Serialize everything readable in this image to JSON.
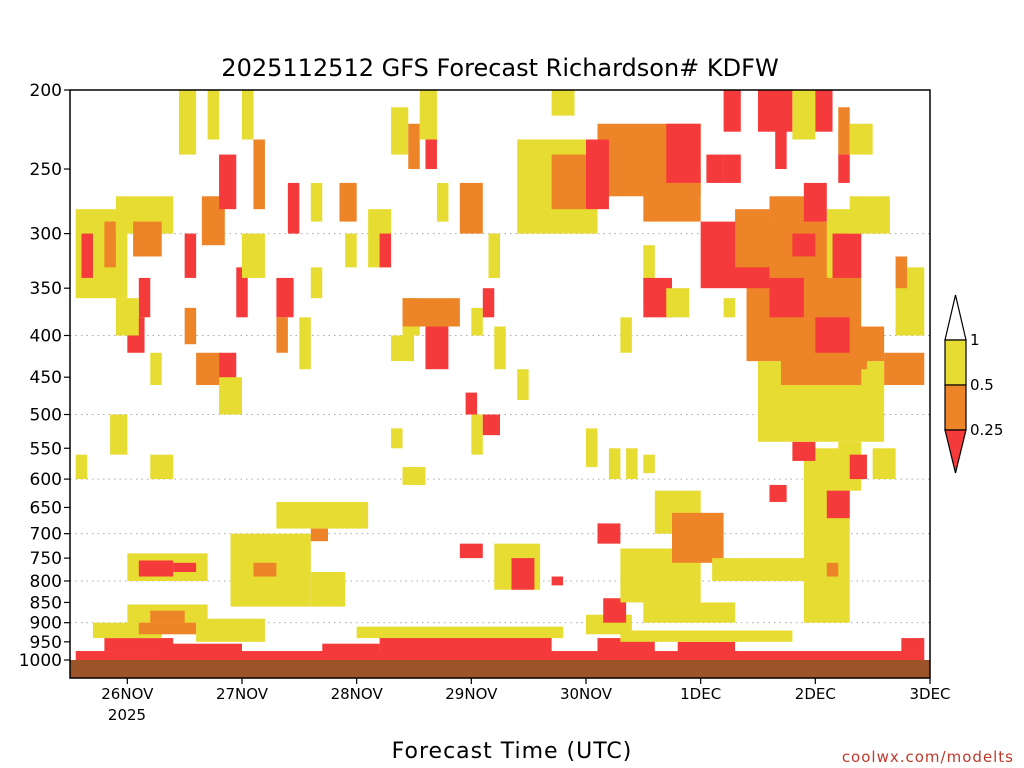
{
  "chart_data": {
    "type": "heatmap",
    "title": "2025112512 GFS Forecast Richardson# KDFW",
    "xlabel": "Forecast Time (UTC)",
    "credit": "coolwx.com/modelts",
    "x_ticks": [
      "26NOV",
      "27NOV",
      "28NOV",
      "29NOV",
      "30NOV",
      "1DEC",
      "2DEC",
      "3DEC"
    ],
    "x_tick_sublabel": "2025",
    "x_range_days": [
      -0.5,
      7.0
    ],
    "y_ticks": [
      200,
      250,
      300,
      350,
      400,
      450,
      500,
      550,
      600,
      650,
      700,
      750,
      800,
      850,
      900,
      950,
      1000
    ],
    "y_gridlines": [
      300,
      400,
      500,
      600,
      700,
      800,
      900
    ],
    "y_range_hPa": [
      200,
      1000
    ],
    "colorbar": {
      "labels": [
        "1",
        "0.5",
        "0.25"
      ],
      "levels": [
        {
          "range": ">1",
          "color": "#ffffff"
        },
        {
          "range": "0.5-1",
          "color": "#e6dc32"
        },
        {
          "range": "0.25-0.5",
          "color": "#ee8428"
        },
        {
          "range": "<0.25",
          "color": "#f43a3a"
        }
      ]
    },
    "surface_color": "#9c5428",
    "regions": [
      {
        "t0": -0.45,
        "t1": 6.95,
        "p0": 975,
        "p1": 1000,
        "level": "<0.25"
      },
      {
        "t0": -0.2,
        "t1": 0.4,
        "p0": 940,
        "p1": 975,
        "level": "<0.25"
      },
      {
        "t0": 0.3,
        "t1": 1.0,
        "p0": 955,
        "p1": 985,
        "level": "<0.25"
      },
      {
        "t0": 1.7,
        "t1": 2.2,
        "p0": 955,
        "p1": 985,
        "level": "<0.25"
      },
      {
        "t0": 2.2,
        "t1": 3.7,
        "p0": 930,
        "p1": 985,
        "level": "<0.25"
      },
      {
        "t0": 4.1,
        "t1": 4.6,
        "p0": 940,
        "p1": 980,
        "level": "<0.25"
      },
      {
        "t0": 4.8,
        "t1": 5.3,
        "p0": 950,
        "p1": 985,
        "level": "<0.25"
      },
      {
        "t0": 6.75,
        "t1": 6.95,
        "p0": 940,
        "p1": 975,
        "level": "<0.25"
      },
      {
        "t0": -0.3,
        "t1": 0.3,
        "p0": 900,
        "p1": 940,
        "level": "0.5-1"
      },
      {
        "t0": 0.1,
        "t1": 0.6,
        "p0": 880,
        "p1": 930,
        "level": "0.25-0.5"
      },
      {
        "t0": 0.6,
        "t1": 1.2,
        "p0": 890,
        "p1": 950,
        "level": "0.5-1"
      },
      {
        "t0": 2.0,
        "t1": 3.8,
        "p0": 910,
        "p1": 940,
        "level": "0.5-1"
      },
      {
        "t0": 4.0,
        "t1": 4.4,
        "p0": 880,
        "p1": 930,
        "level": "0.5-1"
      },
      {
        "t0": 4.3,
        "t1": 5.8,
        "p0": 920,
        "p1": 950,
        "level": "0.5-1"
      },
      {
        "t0": 0.0,
        "t1": 0.7,
        "p0": 740,
        "p1": 800,
        "level": "0.5-1"
      },
      {
        "t0": 0.1,
        "t1": 0.4,
        "p0": 755,
        "p1": 790,
        "level": "<0.25"
      },
      {
        "t0": 0.4,
        "t1": 0.6,
        "p0": 760,
        "p1": 780,
        "level": "<0.25"
      },
      {
        "t0": 0.9,
        "t1": 1.6,
        "p0": 700,
        "p1": 860,
        "level": "0.5-1"
      },
      {
        "t0": 1.1,
        "t1": 1.3,
        "p0": 760,
        "p1": 790,
        "level": "0.25-0.5"
      },
      {
        "t0": 1.6,
        "t1": 1.9,
        "p0": 780,
        "p1": 860,
        "level": "0.5-1"
      },
      {
        "t0": 1.3,
        "t1": 2.1,
        "p0": 640,
        "p1": 690,
        "level": "0.5-1"
      },
      {
        "t0": 1.6,
        "t1": 1.75,
        "p0": 690,
        "p1": 715,
        "level": "0.25-0.5"
      },
      {
        "t0": 2.4,
        "t1": 2.6,
        "p0": 580,
        "p1": 610,
        "level": "0.5-1"
      },
      {
        "t0": 0.0,
        "t1": 0.7,
        "p0": 855,
        "p1": 900,
        "level": "0.5-1"
      },
      {
        "t0": 0.2,
        "t1": 0.5,
        "p0": 870,
        "p1": 900,
        "level": "0.25-0.5"
      },
      {
        "t0": 3.2,
        "t1": 3.6,
        "p0": 720,
        "p1": 820,
        "level": "0.5-1"
      },
      {
        "t0": 3.35,
        "t1": 3.55,
        "p0": 750,
        "p1": 820,
        "level": "<0.25"
      },
      {
        "t0": 2.9,
        "t1": 3.1,
        "p0": 720,
        "p1": 750,
        "level": "<0.25"
      },
      {
        "t0": 3.7,
        "t1": 3.8,
        "p0": 790,
        "p1": 810,
        "level": "<0.25"
      },
      {
        "t0": 4.15,
        "t1": 4.35,
        "p0": 840,
        "p1": 900,
        "level": "<0.25"
      },
      {
        "t0": 4.1,
        "t1": 4.3,
        "p0": 680,
        "p1": 720,
        "level": "<0.25"
      },
      {
        "t0": 4.3,
        "t1": 5.0,
        "p0": 730,
        "p1": 850,
        "level": "0.5-1"
      },
      {
        "t0": 4.5,
        "t1": 5.3,
        "p0": 850,
        "p1": 900,
        "level": "0.5-1"
      },
      {
        "t0": 4.6,
        "t1": 5.0,
        "p0": 620,
        "p1": 700,
        "level": "0.5-1"
      },
      {
        "t0": 4.75,
        "t1": 5.2,
        "p0": 660,
        "p1": 760,
        "level": "0.25-0.5"
      },
      {
        "t0": 5.1,
        "t1": 6.2,
        "p0": 750,
        "p1": 800,
        "level": "0.5-1"
      },
      {
        "t0": 5.9,
        "t1": 6.3,
        "p0": 550,
        "p1": 900,
        "level": "0.5-1"
      },
      {
        "t0": 6.1,
        "t1": 6.2,
        "p0": 760,
        "p1": 790,
        "level": "0.25-0.5"
      },
      {
        "t0": 6.2,
        "t1": 6.4,
        "p0": 540,
        "p1": 620,
        "level": "0.5-1"
      },
      {
        "t0": 6.1,
        "t1": 6.3,
        "p0": 620,
        "p1": 670,
        "level": "<0.25"
      },
      {
        "t0": 6.3,
        "t1": 6.45,
        "p0": 560,
        "p1": 600,
        "level": "<0.25"
      },
      {
        "t0": 6.5,
        "t1": 6.7,
        "p0": 550,
        "p1": 600,
        "level": "0.5-1"
      },
      {
        "t0": 5.6,
        "t1": 5.75,
        "p0": 610,
        "p1": 640,
        "level": "<0.25"
      },
      {
        "t0": 5.8,
        "t1": 6.0,
        "p0": 540,
        "p1": 570,
        "level": "<0.25"
      },
      {
        "t0": 5.5,
        "t1": 6.6,
        "p0": 430,
        "p1": 540,
        "level": "0.5-1"
      },
      {
        "t0": 5.7,
        "t1": 6.45,
        "p0": 420,
        "p1": 460,
        "level": "0.25-0.5"
      },
      {
        "t0": 6.4,
        "t1": 6.6,
        "p0": 440,
        "p1": 470,
        "level": "0.5-1"
      },
      {
        "t0": 5.4,
        "t1": 6.4,
        "p0": 290,
        "p1": 430,
        "level": "0.25-0.5"
      },
      {
        "t0": 5.6,
        "t1": 5.9,
        "p0": 340,
        "p1": 380,
        "level": "<0.25"
      },
      {
        "t0": 6.0,
        "t1": 6.3,
        "p0": 380,
        "p1": 420,
        "level": "<0.25"
      },
      {
        "t0": 6.35,
        "t1": 6.6,
        "p0": 390,
        "p1": 430,
        "level": "0.25-0.5"
      },
      {
        "t0": 6.6,
        "t1": 6.95,
        "p0": 420,
        "p1": 460,
        "level": "0.25-0.5"
      },
      {
        "t0": 6.7,
        "t1": 6.95,
        "p0": 330,
        "p1": 400,
        "level": "0.5-1"
      },
      {
        "t0": 6.7,
        "t1": 6.8,
        "p0": 320,
        "p1": 350,
        "level": "0.25-0.5"
      },
      {
        "t0": 5.0,
        "t1": 5.6,
        "p0": 290,
        "p1": 350,
        "level": "<0.25"
      },
      {
        "t0": 5.3,
        "t1": 5.6,
        "p0": 280,
        "p1": 330,
        "level": "0.25-0.5"
      },
      {
        "t0": 5.6,
        "t1": 6.05,
        "p0": 270,
        "p1": 330,
        "level": "0.25-0.5"
      },
      {
        "t0": 6.1,
        "t1": 6.4,
        "p0": 280,
        "p1": 340,
        "level": "0.5-1"
      },
      {
        "t0": 6.15,
        "t1": 6.4,
        "p0": 300,
        "p1": 340,
        "level": "<0.25"
      },
      {
        "t0": 6.3,
        "t1": 6.65,
        "p0": 270,
        "p1": 300,
        "level": "0.5-1"
      },
      {
        "t0": 4.1,
        "t1": 5.0,
        "p0": 220,
        "p1": 270,
        "level": "0.25-0.5"
      },
      {
        "t0": 4.5,
        "t1": 5.0,
        "p0": 250,
        "p1": 290,
        "level": "0.25-0.5"
      },
      {
        "t0": 3.4,
        "t1": 4.1,
        "p0": 230,
        "p1": 300,
        "level": "0.5-1"
      },
      {
        "t0": 3.7,
        "t1": 4.0,
        "p0": 240,
        "p1": 280,
        "level": "0.25-0.5"
      },
      {
        "t0": 4.0,
        "t1": 4.2,
        "p0": 250,
        "p1": 280,
        "level": "<0.25"
      },
      {
        "t0": 4.0,
        "t1": 4.2,
        "p0": 230,
        "p1": 250,
        "level": "<0.25"
      },
      {
        "t0": 4.7,
        "t1": 5.0,
        "p0": 220,
        "p1": 260,
        "level": "<0.25"
      },
      {
        "t0": 5.5,
        "t1": 5.8,
        "p0": 200,
        "p1": 225,
        "level": "<0.25"
      },
      {
        "t0": 5.8,
        "t1": 6.0,
        "p0": 200,
        "p1": 230,
        "level": "0.5-1"
      },
      {
        "t0": 6.0,
        "t1": 6.15,
        "p0": 200,
        "p1": 225,
        "level": "<0.25"
      },
      {
        "t0": 6.2,
        "t1": 6.3,
        "p0": 210,
        "p1": 240,
        "level": "0.25-0.5"
      },
      {
        "t0": 6.3,
        "t1": 6.5,
        "p0": 220,
        "p1": 240,
        "level": "0.5-1"
      },
      {
        "t0": 6.2,
        "t1": 6.3,
        "p0": 240,
        "p1": 260,
        "level": "<0.25"
      },
      {
        "t0": 5.9,
        "t1": 6.1,
        "p0": 260,
        "p1": 290,
        "level": "<0.25"
      },
      {
        "t0": 5.8,
        "t1": 6.0,
        "p0": 300,
        "p1": 320,
        "level": "<0.25"
      },
      {
        "t0": 5.2,
        "t1": 5.35,
        "p0": 200,
        "p1": 225,
        "level": "<0.25"
      },
      {
        "t0": 5.2,
        "t1": 5.35,
        "p0": 240,
        "p1": 260,
        "level": "<0.25"
      },
      {
        "t0": 5.65,
        "t1": 5.75,
        "p0": 210,
        "p1": 250,
        "level": "<0.25"
      },
      {
        "t0": 5.05,
        "t1": 5.2,
        "p0": 240,
        "p1": 260,
        "level": "<0.25"
      },
      {
        "t0": 5.15,
        "t1": 5.3,
        "p0": 300,
        "p1": 320,
        "level": "<0.25"
      },
      {
        "t0": 3.7,
        "t1": 3.9,
        "p0": 200,
        "p1": 215,
        "level": "0.5-1"
      },
      {
        "t0": 4.5,
        "t1": 4.6,
        "p0": 310,
        "p1": 360,
        "level": "0.5-1"
      },
      {
        "t0": 4.5,
        "t1": 4.75,
        "p0": 340,
        "p1": 380,
        "level": "<0.25"
      },
      {
        "t0": 4.7,
        "t1": 4.9,
        "p0": 350,
        "p1": 380,
        "level": "0.5-1"
      },
      {
        "t0": 4.3,
        "t1": 4.4,
        "p0": 380,
        "p1": 420,
        "level": "0.5-1"
      },
      {
        "t0": 5.2,
        "t1": 5.3,
        "p0": 360,
        "p1": 380,
        "level": "0.5-1"
      },
      {
        "t0": 4.35,
        "t1": 4.45,
        "p0": 550,
        "p1": 600,
        "level": "0.5-1"
      },
      {
        "t0": 4.5,
        "t1": 4.6,
        "p0": 560,
        "p1": 590,
        "level": "0.5-1"
      },
      {
        "t0": 4.2,
        "t1": 4.3,
        "p0": 550,
        "p1": 600,
        "level": "0.5-1"
      },
      {
        "t0": 4.0,
        "t1": 4.1,
        "p0": 520,
        "p1": 580,
        "level": "0.5-1"
      },
      {
        "t0": -0.45,
        "t1": 0.0,
        "p0": 280,
        "p1": 360,
        "level": "0.5-1"
      },
      {
        "t0": -0.4,
        "t1": -0.3,
        "p0": 300,
        "p1": 340,
        "level": "<0.25"
      },
      {
        "t0": -0.2,
        "t1": -0.1,
        "p0": 290,
        "p1": 330,
        "level": "0.25-0.5"
      },
      {
        "t0": -0.1,
        "t1": 0.4,
        "p0": 270,
        "p1": 300,
        "level": "0.5-1"
      },
      {
        "t0": 0.05,
        "t1": 0.3,
        "p0": 290,
        "p1": 320,
        "level": "0.25-0.5"
      },
      {
        "t0": 0.1,
        "t1": 0.2,
        "p0": 340,
        "p1": 380,
        "level": "<0.25"
      },
      {
        "t0": 0.0,
        "t1": 0.15,
        "p0": 380,
        "p1": 420,
        "level": "<0.25"
      },
      {
        "t0": -0.1,
        "t1": 0.1,
        "p0": 360,
        "p1": 400,
        "level": "0.5-1"
      },
      {
        "t0": 0.2,
        "t1": 0.3,
        "p0": 420,
        "p1": 460,
        "level": "0.5-1"
      },
      {
        "t0": 0.45,
        "t1": 0.6,
        "p0": 200,
        "p1": 240,
        "level": "0.5-1"
      },
      {
        "t0": 0.5,
        "t1": 0.6,
        "p0": 300,
        "p1": 340,
        "level": "<0.25"
      },
      {
        "t0": 0.5,
        "t1": 0.6,
        "p0": 370,
        "p1": 410,
        "level": "0.25-0.5"
      },
      {
        "t0": 0.65,
        "t1": 0.85,
        "p0": 270,
        "p1": 310,
        "level": "0.25-0.5"
      },
      {
        "t0": 0.7,
        "t1": 0.8,
        "p0": 200,
        "p1": 230,
        "level": "0.5-1"
      },
      {
        "t0": 0.8,
        "t1": 0.95,
        "p0": 240,
        "p1": 280,
        "level": "<0.25"
      },
      {
        "t0": 0.6,
        "t1": 0.8,
        "p0": 420,
        "p1": 460,
        "level": "0.25-0.5"
      },
      {
        "t0": 0.8,
        "t1": 0.95,
        "p0": 420,
        "p1": 460,
        "level": "<0.25"
      },
      {
        "t0": 0.95,
        "t1": 1.05,
        "p0": 330,
        "p1": 380,
        "level": "<0.25"
      },
      {
        "t0": 1.0,
        "t1": 1.2,
        "p0": 300,
        "p1": 340,
        "level": "0.5-1"
      },
      {
        "t0": 1.0,
        "t1": 1.1,
        "p0": 200,
        "p1": 230,
        "level": "0.5-1"
      },
      {
        "t0": 1.1,
        "t1": 1.2,
        "p0": 230,
        "p1": 280,
        "level": "0.25-0.5"
      },
      {
        "t0": 1.3,
        "t1": 1.45,
        "p0": 340,
        "p1": 380,
        "level": "<0.25"
      },
      {
        "t0": 1.3,
        "t1": 1.4,
        "p0": 380,
        "p1": 420,
        "level": "0.25-0.5"
      },
      {
        "t0": 1.5,
        "t1": 1.6,
        "p0": 380,
        "p1": 440,
        "level": "0.5-1"
      },
      {
        "t0": 1.4,
        "t1": 1.5,
        "p0": 260,
        "p1": 300,
        "level": "<0.25"
      },
      {
        "t0": 1.6,
        "t1": 1.7,
        "p0": 260,
        "p1": 290,
        "level": "0.5-1"
      },
      {
        "t0": 1.6,
        "t1": 1.7,
        "p0": 330,
        "p1": 360,
        "level": "0.5-1"
      },
      {
        "t0": 1.85,
        "t1": 2.0,
        "p0": 260,
        "p1": 290,
        "level": "0.25-0.5"
      },
      {
        "t0": 1.9,
        "t1": 2.0,
        "p0": 300,
        "p1": 330,
        "level": "0.5-1"
      },
      {
        "t0": 2.1,
        "t1": 2.3,
        "p0": 280,
        "p1": 330,
        "level": "0.5-1"
      },
      {
        "t0": 2.2,
        "t1": 2.3,
        "p0": 300,
        "p1": 330,
        "level": "<0.25"
      },
      {
        "t0": 2.3,
        "t1": 2.45,
        "p0": 210,
        "p1": 240,
        "level": "0.5-1"
      },
      {
        "t0": 2.45,
        "t1": 2.55,
        "p0": 220,
        "p1": 250,
        "level": "0.25-0.5"
      },
      {
        "t0": 2.55,
        "t1": 2.7,
        "p0": 200,
        "p1": 230,
        "level": "0.5-1"
      },
      {
        "t0": 2.6,
        "t1": 2.7,
        "p0": 230,
        "p1": 250,
        "level": "<0.25"
      },
      {
        "t0": 2.4,
        "t1": 2.55,
        "p0": 360,
        "p1": 400,
        "level": "0.5-1"
      },
      {
        "t0": 2.4,
        "t1": 2.9,
        "p0": 360,
        "p1": 390,
        "level": "0.25-0.5"
      },
      {
        "t0": 2.6,
        "t1": 2.8,
        "p0": 390,
        "p1": 440,
        "level": "<0.25"
      },
      {
        "t0": 2.3,
        "t1": 2.5,
        "p0": 400,
        "p1": 430,
        "level": "0.5-1"
      },
      {
        "t0": 3.0,
        "t1": 3.1,
        "p0": 370,
        "p1": 400,
        "level": "0.5-1"
      },
      {
        "t0": 2.9,
        "t1": 3.1,
        "p0": 260,
        "p1": 300,
        "level": "0.25-0.5"
      },
      {
        "t0": 2.7,
        "t1": 2.8,
        "p0": 260,
        "p1": 290,
        "level": "0.5-1"
      },
      {
        "t0": 3.1,
        "t1": 3.2,
        "p0": 350,
        "p1": 380,
        "level": "<0.25"
      },
      {
        "t0": 3.15,
        "t1": 3.25,
        "p0": 300,
        "p1": 340,
        "level": "0.5-1"
      },
      {
        "t0": 3.2,
        "t1": 3.3,
        "p0": 390,
        "p1": 440,
        "level": "0.5-1"
      },
      {
        "t0": 2.3,
        "t1": 2.4,
        "p0": 520,
        "p1": 550,
        "level": "0.5-1"
      },
      {
        "t0": -0.15,
        "t1": 0.0,
        "p0": 500,
        "p1": 560,
        "level": "0.5-1"
      },
      {
        "t0": 0.8,
        "t1": 1.0,
        "p0": 450,
        "p1": 500,
        "level": "0.5-1"
      },
      {
        "t0": 0.2,
        "t1": 0.4,
        "p0": 560,
        "p1": 600,
        "level": "0.5-1"
      },
      {
        "t0": -0.45,
        "t1": -0.35,
        "p0": 560,
        "p1": 600,
        "level": "0.5-1"
      },
      {
        "t0": 3.0,
        "t1": 3.1,
        "p0": 500,
        "p1": 560,
        "level": "0.5-1"
      },
      {
        "t0": 3.1,
        "t1": 3.25,
        "p0": 500,
        "p1": 530,
        "level": "<0.25"
      },
      {
        "t0": 3.4,
        "t1": 3.5,
        "p0": 440,
        "p1": 480,
        "level": "0.5-1"
      },
      {
        "t0": 2.95,
        "t1": 3.05,
        "p0": 470,
        "p1": 500,
        "level": "<0.25"
      }
    ]
  }
}
